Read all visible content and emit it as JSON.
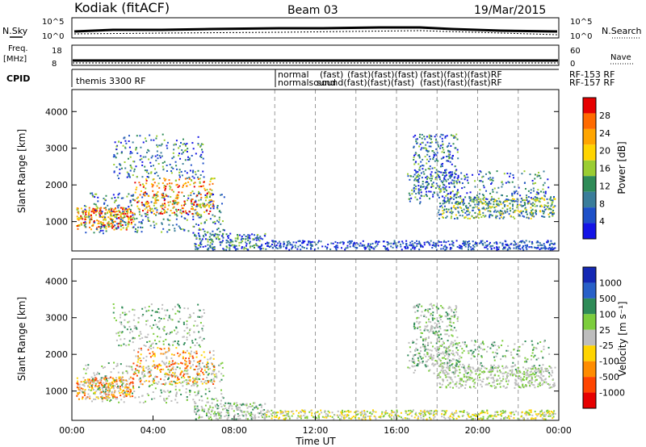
{
  "header": {
    "station": "Kodiak (fitACF)",
    "beam": "Beam 03",
    "date": "19/Mar/2015"
  },
  "panels": {
    "nsky_label": "N.Sky",
    "nsearch_label": "N.Search",
    "noise_ticks": [
      "10^5",
      "10^0"
    ],
    "freq_label": "Freq.",
    "freq_unit": "[MHz]",
    "freq_ticks": [
      "18",
      "8"
    ],
    "nave_label": "Nave",
    "nave_ticks": [
      "60",
      "0"
    ],
    "cpid_label": "CPID",
    "cpid_entries": [
      "themis 3300 RF",
      "normal",
      "normalsound",
      "(fast)",
      "RF-153 RF",
      "RF-157 RF"
    ]
  },
  "colors": {
    "axis": "#000000",
    "grid_dash": "#9a9a9a",
    "ground_scatter": "#bdbdbd"
  },
  "chart_data": [
    {
      "type": "heatmap",
      "name": "power",
      "ylabel": "Slant Range [km]",
      "yticks": [
        1000,
        2000,
        3000,
        4000
      ],
      "ylim": [
        200,
        4600
      ],
      "xlim": [
        0,
        24
      ],
      "colorbar_label": "Power [dB]",
      "colorbar_ticks": [
        "28",
        "24",
        "20",
        "16",
        "12",
        "8",
        "4"
      ],
      "colorbar_colors": [
        "#e60000",
        "#ff6a00",
        "#ffa500",
        "#ffd400",
        "#9acd32",
        "#2e8b57",
        "#3a7d9a",
        "#1e50c8",
        "#1414e6"
      ]
    },
    {
      "type": "heatmap",
      "name": "velocity",
      "ylabel": "Slant Range [km]",
      "yticks": [
        1000,
        2000,
        3000,
        4000
      ],
      "ylim": [
        200,
        4600
      ],
      "xlim": [
        0,
        24
      ],
      "xlabel": "Time UT",
      "xticks": [
        "00:00",
        "04:00",
        "08:00",
        "12:00",
        "16:00",
        "20:00",
        "00:00"
      ],
      "colorbar_label": "Velocity [m s⁻¹]",
      "colorbar_ticks": [
        "1000",
        "500",
        "100",
        "25",
        "-25",
        "-100",
        "-500",
        "-1000"
      ],
      "colorbar_colors": [
        "#1428b4",
        "#2860c8",
        "#2e8b57",
        "#7ccd3c",
        "#bdbdbd",
        "#ffd400",
        "#ff8c00",
        "#ff4500",
        "#e60000"
      ]
    }
  ]
}
